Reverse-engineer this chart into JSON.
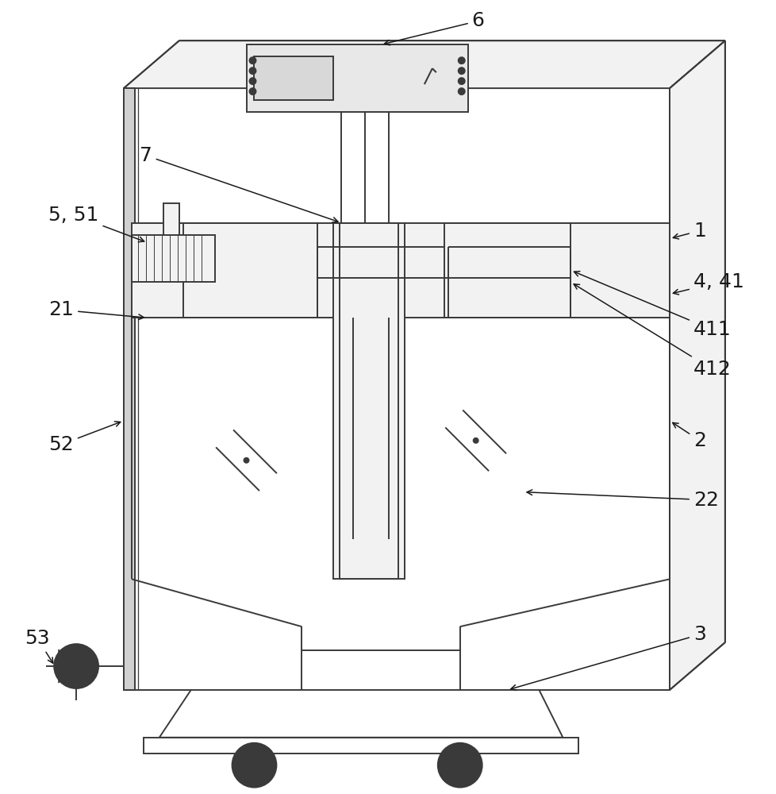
{
  "bg_color": "#ffffff",
  "lc": "#3a3a3a",
  "lw": 1.4,
  "tlw": 0.9,
  "font_size": 18,
  "ann_color": "#1a1a1a",
  "gray_fill": "#e8e8e8",
  "light_fill": "#f2f2f2",
  "mid_fill": "#d8d8d8"
}
